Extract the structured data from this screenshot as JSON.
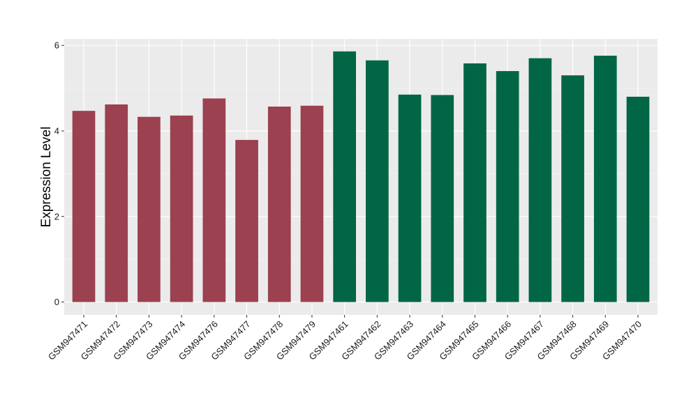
{
  "chart_data": {
    "type": "bar",
    "ylabel": "Expression Level",
    "xlabel": "",
    "ylim": [
      -0.3,
      6.15
    ],
    "yticks": [
      0,
      2,
      4,
      6
    ],
    "ytick_labels": [
      "0",
      "2",
      "4",
      "6"
    ],
    "grid": true,
    "legend": "none",
    "categories": [
      "GSM947471",
      "GSM947472",
      "GSM947473",
      "GSM947474",
      "GSM947476",
      "GSM947477",
      "GSM947478",
      "GSM947479",
      "GSM947461",
      "GSM947462",
      "GSM947463",
      "GSM947464",
      "GSM947465",
      "GSM947466",
      "GSM947467",
      "GSM947468",
      "GSM947469",
      "GSM947470"
    ],
    "values": [
      4.47,
      4.62,
      4.33,
      4.36,
      4.76,
      3.79,
      4.57,
      4.59,
      5.86,
      5.65,
      4.85,
      4.84,
      5.58,
      5.4,
      5.7,
      5.3,
      5.76,
      4.8
    ],
    "bar_colors": [
      "#9b4150",
      "#9b4150",
      "#9b4150",
      "#9b4150",
      "#9b4150",
      "#9b4150",
      "#9b4150",
      "#9b4150",
      "#006646",
      "#006646",
      "#006646",
      "#006646",
      "#006646",
      "#006646",
      "#006646",
      "#006646",
      "#006646",
      "#006646"
    ]
  },
  "colors": {
    "panel_background": "#ebebeb",
    "grid_major": "#ffffff",
    "grid_minor": "#f4f4f4",
    "group_1": "#9b4150",
    "group_2": "#006646"
  }
}
